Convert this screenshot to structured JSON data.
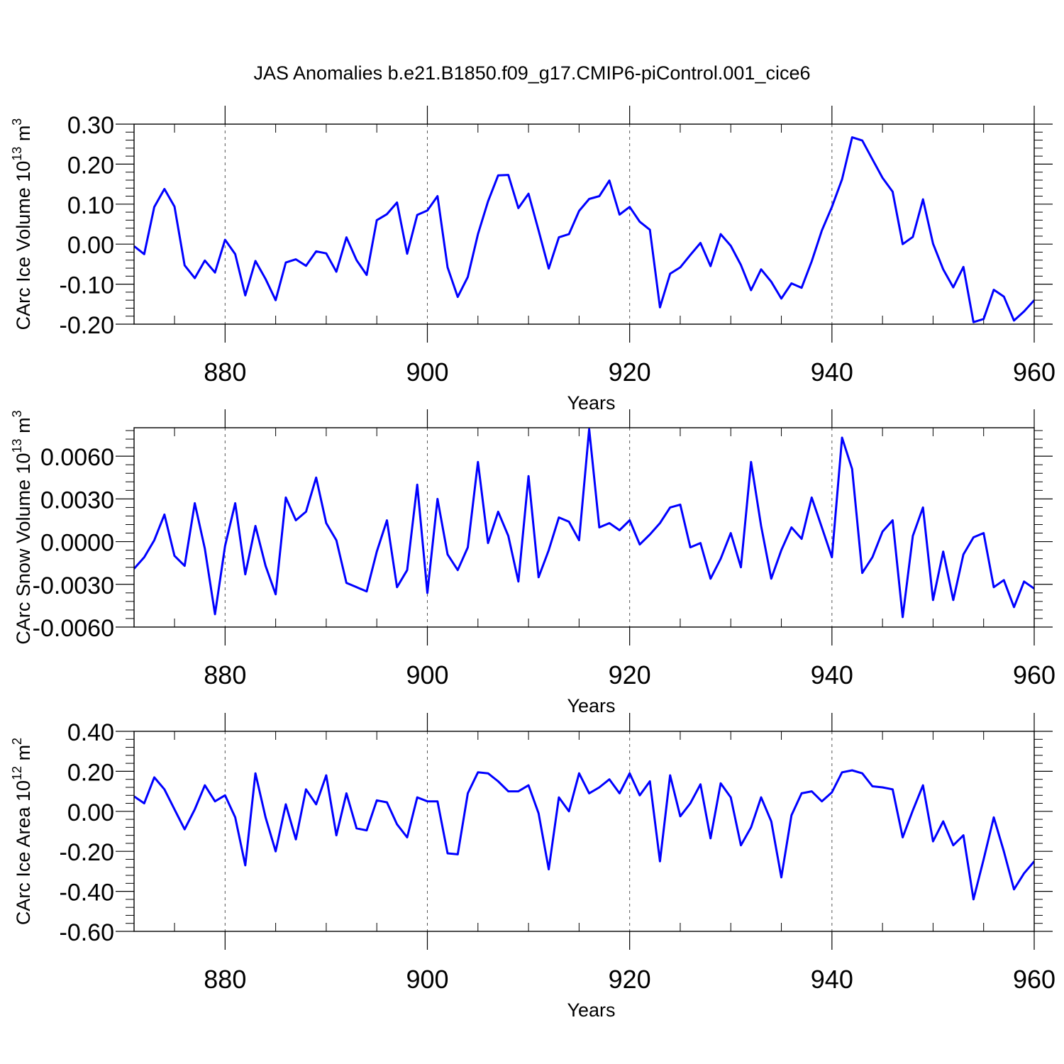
{
  "figure": {
    "title": "JAS Anomalies b.e21.B1850.f09_g17.CMIP6-piControl.001_cice6",
    "line_color": "#0000ff"
  },
  "chart_data": [
    {
      "type": "line",
      "panel": "volume",
      "ylabel_main": "CArc Ice Volume 10",
      "ylabel_exp": "13",
      "ylabel_unit": " m",
      "ylabel_unit_exp": "3",
      "xlabel": "Years",
      "xlim": [
        871,
        960
      ],
      "ylim": [
        -0.2,
        0.3
      ],
      "xticks": [
        880,
        900,
        920,
        940,
        960
      ],
      "xtick_labels": [
        "880",
        "900",
        "920",
        "940",
        "960"
      ],
      "yticks": [
        0.3,
        0.2,
        0.1,
        0.0,
        -0.1,
        -0.2
      ],
      "ytick_labels": [
        "0.30",
        "0.20",
        "0.10",
        "0.00",
        "-0.10",
        "-0.20"
      ],
      "x_start": 871,
      "values": [
        -0.005,
        -0.025,
        0.093,
        0.138,
        0.094,
        -0.053,
        -0.085,
        -0.041,
        -0.071,
        0.011,
        -0.025,
        -0.128,
        -0.042,
        -0.087,
        -0.14,
        -0.046,
        -0.038,
        -0.054,
        -0.018,
        -0.023,
        -0.069,
        0.017,
        -0.04,
        -0.077,
        0.06,
        0.075,
        0.104,
        -0.024,
        0.073,
        0.084,
        0.12,
        -0.058,
        -0.132,
        -0.082,
        0.025,
        0.107,
        0.172,
        0.173,
        0.09,
        0.126,
        0.034,
        -0.061,
        0.017,
        0.025,
        0.083,
        0.113,
        0.12,
        0.159,
        0.074,
        0.093,
        0.056,
        0.036,
        -0.158,
        -0.074,
        -0.058,
        -0.027,
        0.003,
        -0.055,
        0.025,
        -0.004,
        -0.052,
        -0.115,
        -0.063,
        -0.094,
        -0.136,
        -0.098,
        -0.109,
        -0.043,
        0.034,
        0.093,
        0.162,
        0.267,
        0.259,
        0.212,
        0.166,
        0.131,
        0.0,
        0.018,
        0.112,
        0.001,
        -0.063,
        -0.108,
        -0.057,
        -0.195,
        -0.187,
        -0.114,
        -0.131,
        -0.191,
        -0.168,
        -0.14
      ]
    },
    {
      "type": "line",
      "panel": "snow",
      "ylabel_main": "CArc Snow Volume 10",
      "ylabel_exp": "13",
      "ylabel_unit": " m",
      "ylabel_unit_exp": "3",
      "xlabel": "Years",
      "xlim": [
        871,
        960
      ],
      "ylim": [
        -0.006,
        0.008
      ],
      "xticks": [
        880,
        900,
        920,
        940,
        960
      ],
      "xtick_labels": [
        "880",
        "900",
        "920",
        "940",
        "960"
      ],
      "yticks": [
        0.006,
        0.003,
        0.0,
        -0.003,
        -0.006
      ],
      "ytick_labels": [
        "0.0060",
        "0.0030",
        "0.0000",
        "-0.0030",
        "-0.0060"
      ],
      "x_start": 871,
      "values": [
        -0.0019,
        -0.0011,
        0.0001,
        0.0019,
        -0.001,
        -0.0017,
        0.0027,
        -0.0005,
        -0.0051,
        -0.0003,
        0.0027,
        -0.0023,
        0.0011,
        -0.0017,
        -0.0037,
        0.0031,
        0.0015,
        0.0021,
        0.0045,
        0.0013,
        0.0001,
        -0.0029,
        -0.0032,
        -0.0035,
        -0.0007,
        0.0015,
        -0.0032,
        -0.002,
        0.004,
        -0.0036,
        0.003,
        -0.0009,
        -0.002,
        -0.0004,
        0.0056,
        -0.0001,
        0.0021,
        0.0004,
        -0.0028,
        0.0046,
        -0.0025,
        -0.0006,
        0.0017,
        0.0014,
        0.0001,
        0.0079,
        0.001,
        0.0013,
        0.0008,
        0.0015,
        -0.0002,
        0.0005,
        0.0013,
        0.0024,
        0.0026,
        -0.0004,
        -0.0001,
        -0.0026,
        -0.0012,
        0.0006,
        -0.0018,
        0.0056,
        0.0011,
        -0.0026,
        -0.0006,
        0.001,
        0.0002,
        0.0031,
        0.001,
        -0.0011,
        0.0073,
        0.0051,
        -0.0022,
        -0.0011,
        0.0007,
        0.0015,
        -0.0053,
        0.0004,
        0.0024,
        -0.0041,
        -0.0007,
        -0.0041,
        -0.0009,
        0.0003,
        0.0006,
        -0.0032,
        -0.0027,
        -0.0046,
        -0.0028,
        -0.0033
      ]
    },
    {
      "type": "line",
      "panel": "area",
      "ylabel_main": "CArc Ice Area 10",
      "ylabel_exp": "12",
      "ylabel_unit": " m",
      "ylabel_unit_exp": "2",
      "xlabel": "Years",
      "xlim": [
        871,
        960
      ],
      "ylim": [
        -0.6,
        0.4
      ],
      "xticks": [
        880,
        900,
        920,
        940,
        960
      ],
      "xtick_labels": [
        "880",
        "900",
        "920",
        "940",
        "960"
      ],
      "yticks": [
        0.4,
        0.2,
        0.0,
        -0.2,
        -0.4,
        -0.6
      ],
      "ytick_labels": [
        "0.40",
        "0.20",
        "0.00",
        "-0.20",
        "-0.40",
        "-0.60"
      ],
      "x_start": 871,
      "values": [
        0.075,
        0.04,
        0.17,
        0.11,
        0.01,
        -0.09,
        0.01,
        0.13,
        0.05,
        0.08,
        -0.03,
        -0.27,
        0.19,
        -0.03,
        -0.2,
        0.035,
        -0.14,
        0.11,
        0.035,
        0.18,
        -0.12,
        0.09,
        -0.085,
        -0.095,
        0.055,
        0.045,
        -0.065,
        -0.13,
        0.07,
        0.05,
        0.05,
        -0.21,
        -0.215,
        0.09,
        0.195,
        0.19,
        0.15,
        0.1,
        0.1,
        0.13,
        -0.01,
        -0.29,
        0.07,
        0.0,
        0.19,
        0.09,
        0.12,
        0.16,
        0.09,
        0.19,
        0.08,
        0.15,
        -0.25,
        0.18,
        -0.025,
        0.04,
        0.135,
        -0.135,
        0.14,
        0.07,
        -0.17,
        -0.08,
        0.07,
        -0.05,
        -0.33,
        -0.02,
        0.09,
        0.1,
        0.05,
        0.095,
        0.195,
        0.205,
        0.19,
        0.125,
        0.12,
        0.11,
        -0.13,
        0.005,
        0.13,
        -0.15,
        -0.05,
        -0.17,
        -0.12,
        -0.44,
        -0.24,
        -0.03,
        -0.2,
        -0.39,
        -0.31,
        -0.25
      ]
    }
  ]
}
